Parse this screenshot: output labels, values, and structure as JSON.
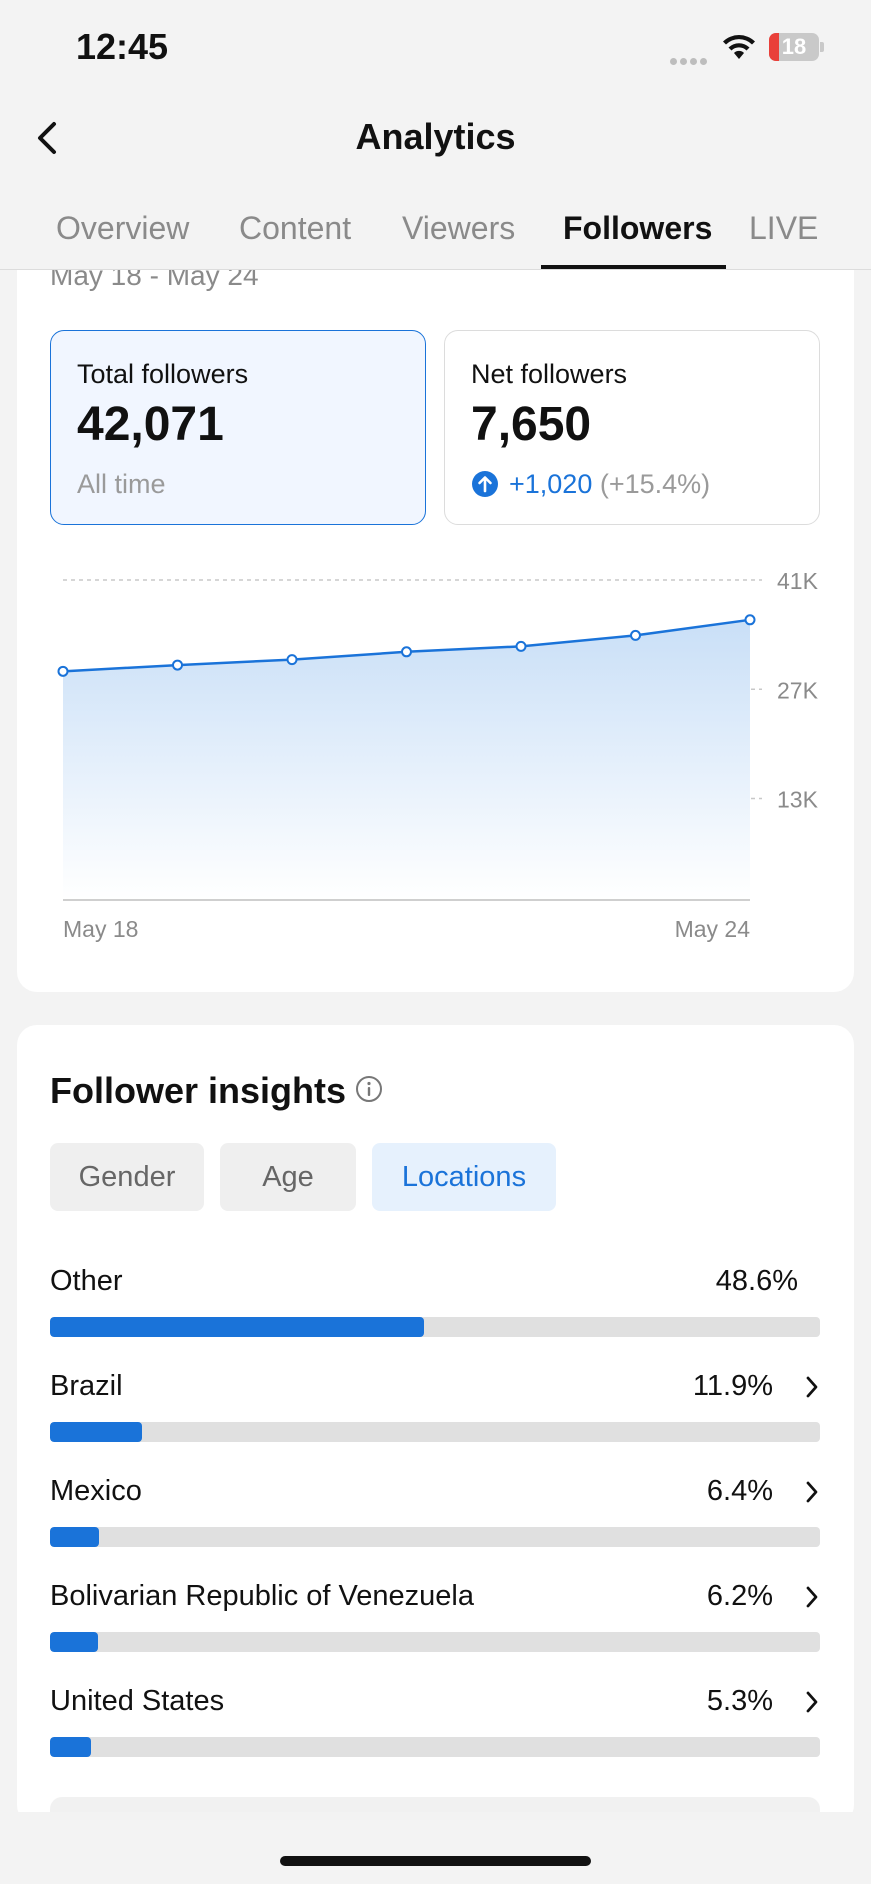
{
  "status_bar": {
    "time": "12:45",
    "battery_level": "18",
    "battery_color": "#e9403a"
  },
  "header": {
    "title": "Analytics",
    "back_icon": "chevron-left-icon"
  },
  "tabs": [
    {
      "label": "Overview",
      "active": false
    },
    {
      "label": "Content",
      "active": false
    },
    {
      "label": "Viewers",
      "active": false
    },
    {
      "label": "Followers",
      "active": true
    },
    {
      "label": "LIVE",
      "active": false
    }
  ],
  "followers": {
    "date_range": "May 18 - May 24",
    "total": {
      "label": "Total followers",
      "value": "42,071",
      "sub": "All time"
    },
    "net": {
      "label": "Net followers",
      "value": "7,650",
      "change": "+1,020",
      "change_pct": "(+15.4%)",
      "change_icon": "arrow-up-circle-icon"
    }
  },
  "chart_data": {
    "type": "area",
    "x": [
      "May 18",
      "May 19",
      "May 20",
      "May 21",
      "May 22",
      "May 23",
      "May 24"
    ],
    "series": [
      {
        "values": [
          29300,
          30100,
          30800,
          31800,
          32500,
          33900,
          35900
        ]
      }
    ],
    "ylim": [
      0,
      41000
    ],
    "y_ticks": [
      "41K",
      "27K",
      "13K"
    ],
    "y_tick_values": [
      41000,
      27000,
      13000
    ],
    "x_tick_labels": [
      "May 18",
      "May 24"
    ],
    "grid": true,
    "accent": "#1a73d9"
  },
  "insights": {
    "title": "Follower insights",
    "info_icon": "info-icon",
    "chips": [
      {
        "label": "Gender",
        "active": false
      },
      {
        "label": "Age",
        "active": false
      },
      {
        "label": "Locations",
        "active": true
      }
    ],
    "locations": [
      {
        "name": "Other",
        "pct": "48.6%",
        "value": 48.6,
        "chevron": false
      },
      {
        "name": "Brazil",
        "pct": "11.9%",
        "value": 11.9,
        "chevron": true
      },
      {
        "name": "Mexico",
        "pct": "6.4%",
        "value": 6.4,
        "chevron": true
      },
      {
        "name": "Bolivarian Republic of Venezuela",
        "pct": "6.2%",
        "value": 6.2,
        "chevron": true
      },
      {
        "name": "United States",
        "pct": "5.3%",
        "value": 5.3,
        "chevron": true
      }
    ]
  }
}
